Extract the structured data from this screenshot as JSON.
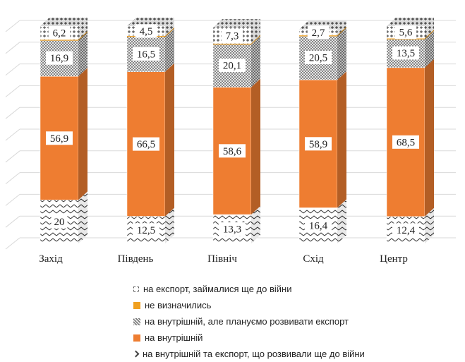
{
  "chart_data": {
    "type": "bar",
    "stacked": true,
    "categories": [
      "Захід",
      "Південь",
      "Північ",
      "Схід",
      "Центр"
    ],
    "series": [
      {
        "name": "на внутрішній та експорт, що розвивали ще до війни",
        "values": [
          20,
          12.5,
          13.3,
          16.4,
          12.4
        ],
        "labels": [
          "20",
          "12,5",
          "13,3",
          "16,4",
          "12,4"
        ],
        "color": "#ffffff",
        "pattern": "zigzag"
      },
      {
        "name": "на внутрішній",
        "values": [
          56.9,
          66.5,
          58.6,
          58.9,
          68.5
        ],
        "labels": [
          "56,9",
          "66,5",
          "58,6",
          "58,9",
          "68,5"
        ],
        "color": "#ee7d31",
        "pattern": "solid"
      },
      {
        "name": "на внутрішній, але плануємо розвивати експорт",
        "values": [
          16.9,
          16.5,
          20.1,
          20.5,
          13.5
        ],
        "labels": [
          "16,9",
          "16,5",
          "20,1",
          "20,5",
          "13,5"
        ],
        "color": "#d0d0d0",
        "pattern": "dots"
      },
      {
        "name": "не визначились",
        "values": [
          0,
          0,
          0,
          0,
          0
        ],
        "labels": [
          "",
          "",
          "",
          "",
          ""
        ],
        "color": "#f0a020",
        "pattern": "solid"
      },
      {
        "name": "на експорт, займалися ще до війни",
        "values": [
          6.2,
          4.5,
          7.3,
          2.7,
          5.6
        ],
        "labels": [
          "6,2",
          "4,5",
          "7,3",
          "2,7",
          "5,6"
        ],
        "color": "#ffffff",
        "pattern": "crosses"
      }
    ],
    "ylim": [
      0,
      100
    ],
    "grid": true,
    "legend_position": "bottom"
  }
}
